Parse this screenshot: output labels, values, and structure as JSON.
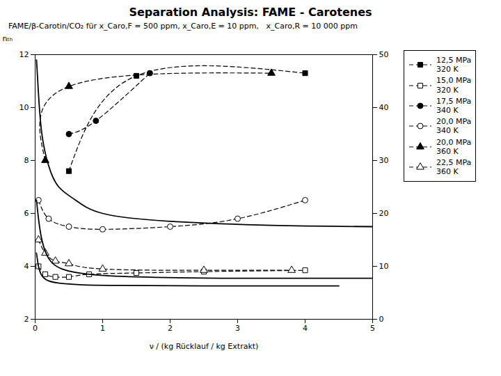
{
  "chart_data": {
    "type": "line",
    "title": "Separation Analysis: FAME - Carotenes",
    "subtitle": "FAME/β-Carotin/CO₂ für x_Caro,F = 500 ppm, x_Caro,E = 10 ppm,   x_Caro,R = 10 000 ppm",
    "xlabel": "ν / (kg Rücklauf / kg Extrakt)",
    "ylabel": "nₜₕ",
    "xlim": [
      0,
      5
    ],
    "xticks": [
      0,
      1,
      2,
      3,
      4,
      5
    ],
    "ylim": [
      2,
      12
    ],
    "yticks": [
      2,
      4,
      6,
      8,
      10,
      12
    ],
    "y2lim": [
      0,
      50
    ],
    "y2ticks": [
      0,
      10,
      20,
      30,
      40,
      50
    ],
    "grid": false,
    "legend": "right",
    "series": [
      {
        "name": "12,5 MPa\n320 K",
        "marker": "square",
        "line_style": "dashed",
        "x": [
          0.5,
          1.5,
          4.0
        ],
        "values": [
          7.6,
          11.2,
          11.3
        ]
      },
      {
        "name": "15,0 MPa\n320 K",
        "marker": "open_square",
        "line_style": "dashed",
        "x": [
          0.05,
          0.15,
          0.3,
          0.5,
          0.8,
          1.5,
          2.5,
          4.0
        ],
        "values": [
          4.0,
          3.7,
          3.6,
          3.6,
          3.7,
          3.75,
          3.8,
          3.85
        ]
      },
      {
        "name": "17,5 MPa\n340 K",
        "marker": "circle",
        "line_style": "dashed",
        "x": [
          0.5,
          0.9,
          1.7
        ],
        "values": [
          9.0,
          9.5,
          11.3
        ]
      },
      {
        "name": "20,0 MPa\n340 K",
        "marker": "open_circle",
        "line_style": "dashed",
        "x": [
          0.05,
          0.2,
          0.5,
          1.0,
          2.0,
          3.0,
          4.0
        ],
        "values": [
          6.5,
          5.8,
          5.5,
          5.4,
          5.5,
          5.8,
          6.5
        ]
      },
      {
        "name": "20,0 MPa\n360 K",
        "marker": "triangle",
        "line_style": "dashed",
        "x": [
          0.15,
          0.5,
          3.5
        ],
        "values": [
          8.0,
          10.8,
          11.3
        ]
      },
      {
        "name": "22,5 MPa\n360 K",
        "marker": "open_triangle",
        "line_style": "dashed",
        "x": [
          0.05,
          0.15,
          0.3,
          0.5,
          1.0,
          2.5,
          3.8
        ],
        "values": [
          5.0,
          4.5,
          4.2,
          4.1,
          3.9,
          3.85,
          3.85
        ]
      },
      {
        "marker": "none",
        "line_style": "solid",
        "x": [
          0.02,
          0.05,
          0.1,
          0.2,
          0.35,
          0.6,
          1.0,
          2.0,
          3.5,
          5.0
        ],
        "values": [
          11.8,
          10.5,
          9.0,
          7.8,
          7.0,
          6.5,
          6.0,
          5.7,
          5.55,
          5.5
        ]
      },
      {
        "marker": "none",
        "line_style": "solid",
        "x": [
          0.02,
          0.05,
          0.1,
          0.2,
          0.4,
          0.8,
          1.5,
          3.0,
          5.0
        ],
        "values": [
          6.5,
          5.8,
          5.0,
          4.3,
          3.9,
          3.7,
          3.6,
          3.55,
          3.55
        ]
      },
      {
        "marker": "none",
        "line_style": "solid",
        "x": [
          0.02,
          0.05,
          0.1,
          0.2,
          0.4,
          0.7,
          1.2,
          2.5,
          4.5
        ],
        "values": [
          4.5,
          4.0,
          3.65,
          3.45,
          3.35,
          3.3,
          3.28,
          3.26,
          3.26
        ]
      }
    ]
  }
}
